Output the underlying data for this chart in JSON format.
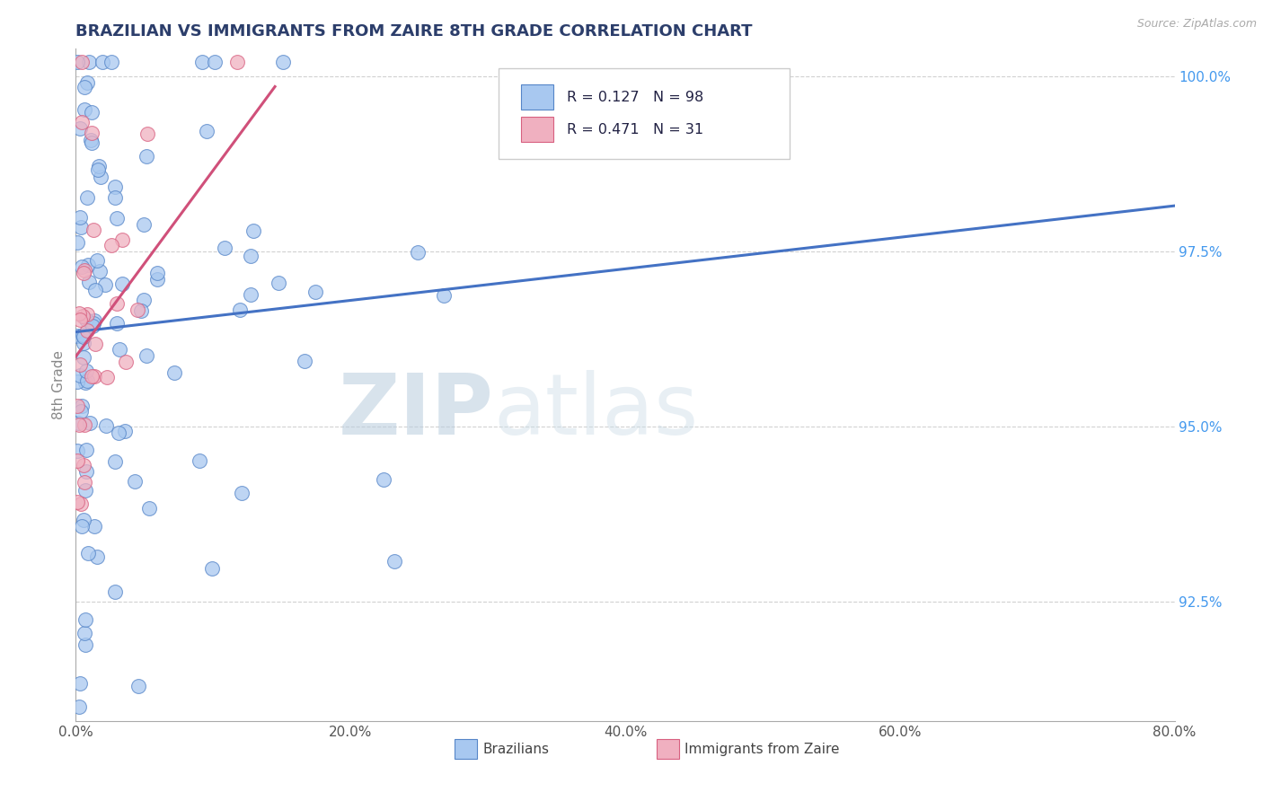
{
  "title": "BRAZILIAN VS IMMIGRANTS FROM ZAIRE 8TH GRADE CORRELATION CHART",
  "source": "Source: ZipAtlas.com",
  "xlabel_blue": "Brazilians",
  "xlabel_pink": "Immigrants from Zaire",
  "ylabel": "8th Grade",
  "xmin": 0.0,
  "xmax": 0.8,
  "ymin": 0.908,
  "ymax": 1.004,
  "yticks": [
    0.925,
    0.95,
    0.975,
    1.0
  ],
  "ytick_labels": [
    "92.5%",
    "95.0%",
    "97.5%",
    "100.0%"
  ],
  "xticks": [
    0.0,
    0.2,
    0.4,
    0.6,
    0.8
  ],
  "xtick_labels": [
    "0.0%",
    "20.0%",
    "40.0%",
    "60.0%",
    "80.0%"
  ],
  "blue_R": 0.127,
  "blue_N": 98,
  "pink_R": 0.471,
  "pink_N": 31,
  "blue_color": "#a8c8f0",
  "pink_color": "#f0b0c0",
  "blue_edge_color": "#5585c8",
  "pink_edge_color": "#d86080",
  "blue_line_color": "#4472c4",
  "pink_line_color": "#d0507a",
  "title_color": "#2c3e6b",
  "axis_label_color": "#888888",
  "ytick_color": "#4499ee",
  "xtick_color": "#555555",
  "watermark_zip_color": "#c8d8e8",
  "watermark_atlas_color": "#d8e4ee",
  "grid_color": "#cccccc",
  "blue_trend_x0": 0.0,
  "blue_trend_y0": 0.9635,
  "blue_trend_x1": 0.8,
  "blue_trend_y1": 0.9815,
  "pink_trend_x0": 0.0,
  "pink_trend_y0": 0.96,
  "pink_trend_x1": 0.145,
  "pink_trend_y1": 0.9985
}
